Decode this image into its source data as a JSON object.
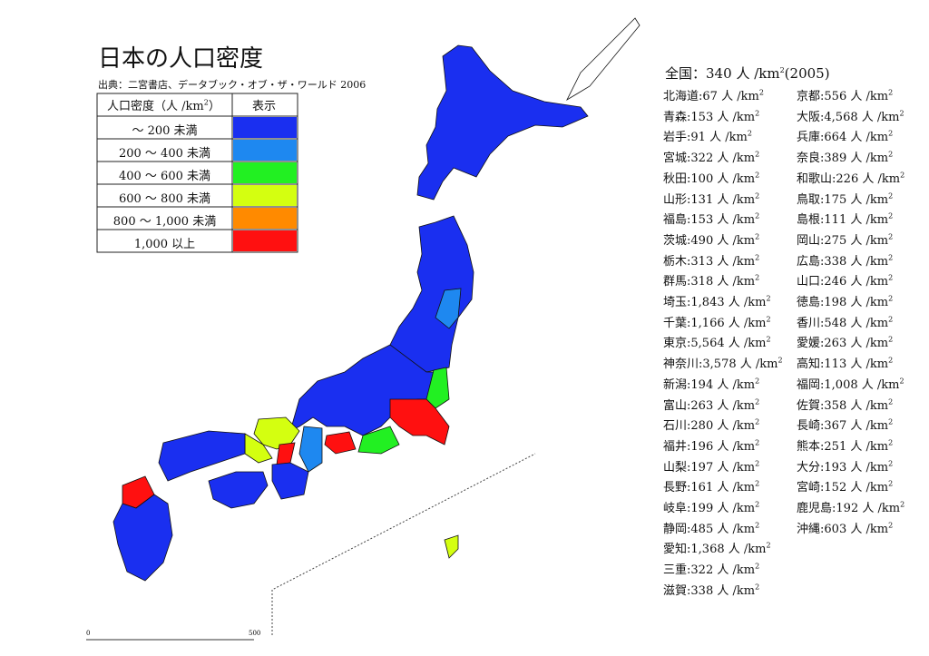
{
  "header": {
    "title": "日本の人口密度",
    "source": "出典：二宮書店、データブック・オブ・ザ・ワールド 2006"
  },
  "legend": {
    "header_label": "人口密度（人 /km",
    "header_sup": "2",
    "header_close": "）",
    "header_color": "表示",
    "rows": [
      {
        "label": "～ 200 未満",
        "color": "#1a2ff0"
      },
      {
        "label": "200 ～ 400 未満",
        "color": "#1e88f0"
      },
      {
        "label": "400 ～ 600 未満",
        "color": "#22f022"
      },
      {
        "label": "600 ～ 800 未満",
        "color": "#d4ff10"
      },
      {
        "label": "800 ～ 1,000 未満",
        "color": "#ff8a00"
      },
      {
        "label": "1,000 以上",
        "color": "#ff1010"
      }
    ]
  },
  "national": {
    "label": "全国：",
    "value": "340",
    "year": "(2005)"
  },
  "unit": {
    "text": "人 /km",
    "sup": "2"
  },
  "separator": ":",
  "prefectures_left": [
    {
      "name": "北海道",
      "value": "67"
    },
    {
      "name": "青森",
      "value": "153"
    },
    {
      "name": "岩手",
      "value": "91"
    },
    {
      "name": "宮城",
      "value": "322"
    },
    {
      "name": "秋田",
      "value": "100"
    },
    {
      "name": "山形",
      "value": "131"
    },
    {
      "name": "福島",
      "value": "153"
    },
    {
      "name": "茨城",
      "value": "490"
    },
    {
      "name": "栃木",
      "value": "313"
    },
    {
      "name": "群馬",
      "value": "318"
    },
    {
      "name": "埼玉",
      "value": "1,843"
    },
    {
      "name": "千葉",
      "value": "1,166"
    },
    {
      "name": "東京",
      "value": "5,564"
    },
    {
      "name": "神奈川",
      "value": "3,578"
    },
    {
      "name": "新潟",
      "value": "194"
    },
    {
      "name": "富山",
      "value": "263"
    },
    {
      "name": "石川",
      "value": "280"
    },
    {
      "name": "福井",
      "value": "196"
    },
    {
      "name": "山梨",
      "value": "197"
    },
    {
      "name": "長野",
      "value": "161"
    },
    {
      "name": "岐阜",
      "value": "199"
    },
    {
      "name": "静岡",
      "value": "485"
    },
    {
      "name": "愛知",
      "value": "1,368"
    },
    {
      "name": "三重",
      "value": "322"
    },
    {
      "name": "滋賀",
      "value": "338"
    }
  ],
  "prefectures_right": [
    {
      "name": "京都",
      "value": "556"
    },
    {
      "name": "大阪",
      "value": "4,568"
    },
    {
      "name": "兵庫",
      "value": "664"
    },
    {
      "name": "奈良",
      "value": "389"
    },
    {
      "name": "和歌山",
      "value": "226"
    },
    {
      "name": "鳥取",
      "value": "175"
    },
    {
      "name": "島根",
      "value": "111"
    },
    {
      "name": "岡山",
      "value": "275"
    },
    {
      "name": "広島",
      "value": "338"
    },
    {
      "name": "山口",
      "value": "246"
    },
    {
      "name": "徳島",
      "value": "198"
    },
    {
      "name": "香川",
      "value": "548"
    },
    {
      "name": "愛媛",
      "value": "263"
    },
    {
      "name": "高知",
      "value": "113"
    },
    {
      "name": "福岡",
      "value": "1,008"
    },
    {
      "name": "佐賀",
      "value": "358"
    },
    {
      "name": "長崎",
      "value": "367"
    },
    {
      "name": "熊本",
      "value": "251"
    },
    {
      "name": "大分",
      "value": "193"
    },
    {
      "name": "宮崎",
      "value": "152"
    },
    {
      "name": "鹿児島",
      "value": "192"
    },
    {
      "name": "沖縄",
      "value": "603"
    }
  ],
  "scale": {
    "start": "0",
    "end": "500"
  }
}
